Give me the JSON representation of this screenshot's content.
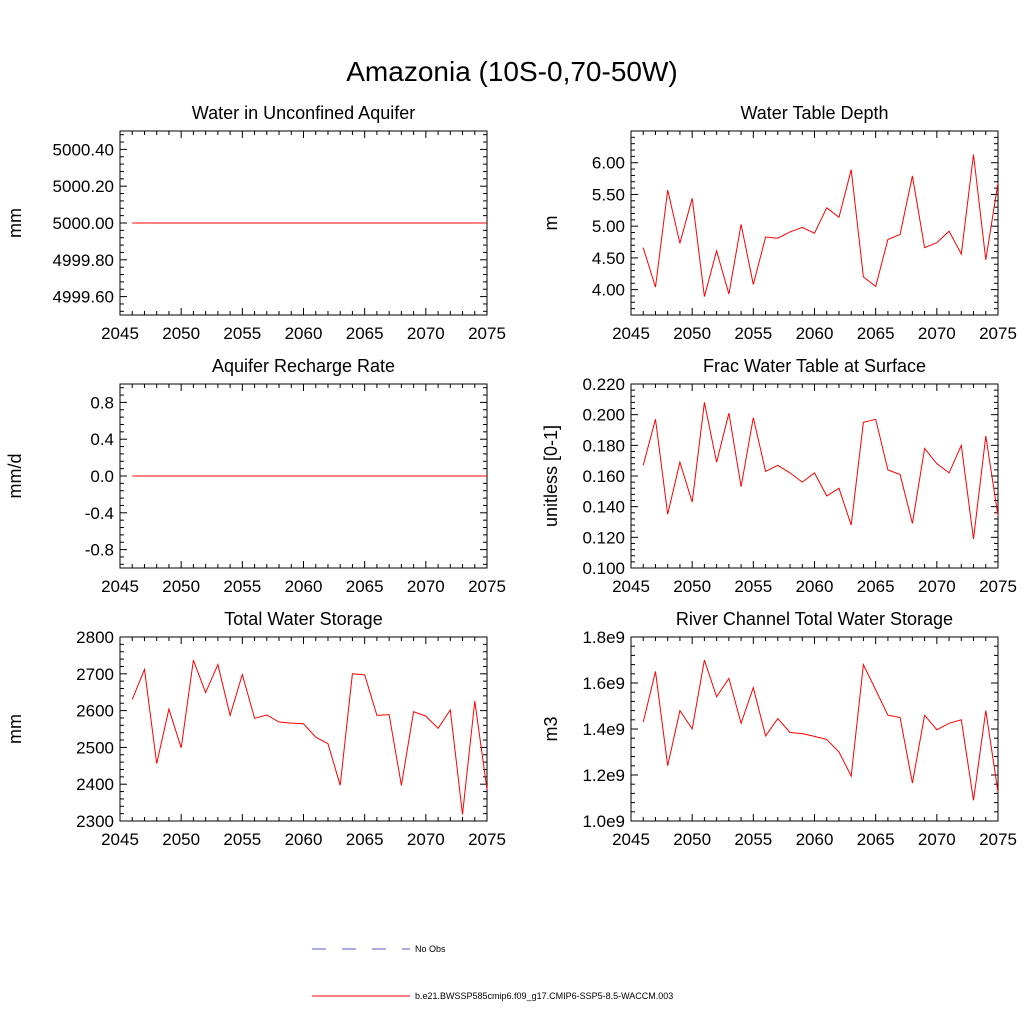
{
  "title": "Amazonia (10S-0,70-50W)",
  "colors": {
    "model": "#ff0000",
    "obs": "#5a5ac8",
    "axis": "#000000"
  },
  "legend": {
    "obs_label": "No Obs",
    "model_label": "b.e21.BWSSP585cmip6.f09_g17.CMIP6-SSP5-8.5-WACCM.003"
  },
  "chart_data": [
    {
      "type": "line",
      "title": "Water in Unconfined Aquifer",
      "ylabel": "mm",
      "xlim": [
        2045,
        2075
      ],
      "ylim": [
        4999.5,
        5000.5
      ],
      "xticks": [
        2045,
        2050,
        2055,
        2060,
        2065,
        2070,
        2075
      ],
      "xtick_labels": [
        "2045",
        "2050",
        "2055",
        "2060",
        "2065",
        "2070",
        "2075"
      ],
      "yticks": [
        4999.6,
        4999.8,
        5000.0,
        5000.2,
        5000.4
      ],
      "ytick_labels": [
        "4999.60",
        "4999.80",
        "5000.00",
        "5000.20",
        "5000.40"
      ],
      "x": [
        2046,
        2047,
        2048,
        2049,
        2050,
        2051,
        2052,
        2053,
        2054,
        2055,
        2056,
        2057,
        2058,
        2059,
        2060,
        2061,
        2062,
        2063,
        2064,
        2065,
        2066,
        2067,
        2068,
        2069,
        2070,
        2071,
        2072,
        2073,
        2074,
        2075
      ],
      "series": [
        {
          "values": [
            5000,
            5000,
            5000,
            5000,
            5000,
            5000,
            5000,
            5000,
            5000,
            5000,
            5000,
            5000,
            5000,
            5000,
            5000,
            5000,
            5000,
            5000,
            5000,
            5000,
            5000,
            5000,
            5000,
            5000,
            5000,
            5000,
            5000,
            5000,
            5000,
            5000
          ]
        }
      ]
    },
    {
      "type": "line",
      "title": "Water Table Depth",
      "ylabel": "m",
      "xlim": [
        2045,
        2075
      ],
      "ylim": [
        3.6,
        6.5
      ],
      "xticks": [
        2045,
        2050,
        2055,
        2060,
        2065,
        2070,
        2075
      ],
      "xtick_labels": [
        "2045",
        "2050",
        "2055",
        "2060",
        "2065",
        "2070",
        "2075"
      ],
      "yticks": [
        4.0,
        4.5,
        5.0,
        5.5,
        6.0
      ],
      "ytick_labels": [
        "4.00",
        "4.50",
        "5.00",
        "5.50",
        "6.00"
      ],
      "x": [
        2046,
        2047,
        2048,
        2049,
        2050,
        2051,
        2052,
        2053,
        2054,
        2055,
        2056,
        2057,
        2058,
        2059,
        2060,
        2061,
        2062,
        2063,
        2064,
        2065,
        2066,
        2067,
        2068,
        2069,
        2070,
        2071,
        2072,
        2073,
        2074,
        2075
      ],
      "series": [
        {
          "values": [
            4.66,
            4.04,
            5.57,
            4.73,
            5.44,
            3.89,
            4.61,
            3.93,
            5.03,
            4.08,
            4.83,
            4.81,
            4.91,
            4.98,
            4.89,
            5.29,
            5.14,
            5.89,
            4.2,
            4.05,
            4.79,
            4.87,
            5.79,
            4.66,
            4.74,
            4.92,
            4.56,
            6.13,
            4.47,
            5.68
          ]
        }
      ]
    },
    {
      "type": "line",
      "title": "Aquifer Recharge Rate",
      "ylabel": "mm/d",
      "xlim": [
        2045,
        2075
      ],
      "ylim": [
        -1,
        1
      ],
      "xticks": [
        2045,
        2050,
        2055,
        2060,
        2065,
        2070,
        2075
      ],
      "xtick_labels": [
        "2045",
        "2050",
        "2055",
        "2060",
        "2065",
        "2070",
        "2075"
      ],
      "yticks": [
        -0.8,
        -0.4,
        0.0,
        0.4,
        0.8
      ],
      "ytick_labels": [
        "-0.8",
        "-0.4",
        "0.0",
        "0.4",
        "0.8"
      ],
      "x": [
        2046,
        2047,
        2048,
        2049,
        2050,
        2051,
        2052,
        2053,
        2054,
        2055,
        2056,
        2057,
        2058,
        2059,
        2060,
        2061,
        2062,
        2063,
        2064,
        2065,
        2066,
        2067,
        2068,
        2069,
        2070,
        2071,
        2072,
        2073,
        2074,
        2075
      ],
      "series": [
        {
          "values": [
            0,
            0,
            0,
            0,
            0,
            0,
            0,
            0,
            0,
            0,
            0,
            0,
            0,
            0,
            0,
            0,
            0,
            0,
            0,
            0,
            0,
            0,
            0,
            0,
            0,
            0,
            0,
            0,
            0,
            0
          ]
        }
      ]
    },
    {
      "type": "line",
      "title": "Frac Water Table at Surface",
      "ylabel": "unitless [0-1]",
      "xlim": [
        2045,
        2075
      ],
      "ylim": [
        0.1,
        0.22
      ],
      "xticks": [
        2045,
        2050,
        2055,
        2060,
        2065,
        2070,
        2075
      ],
      "xtick_labels": [
        "2045",
        "2050",
        "2055",
        "2060",
        "2065",
        "2070",
        "2075"
      ],
      "yticks": [
        0.1,
        0.12,
        0.14,
        0.16,
        0.18,
        0.2,
        0.22
      ],
      "ytick_labels": [
        "0.100",
        "0.120",
        "0.140",
        "0.160",
        "0.180",
        "0.200",
        "0.220"
      ],
      "x": [
        2046,
        2047,
        2048,
        2049,
        2050,
        2051,
        2052,
        2053,
        2054,
        2055,
        2056,
        2057,
        2058,
        2059,
        2060,
        2061,
        2062,
        2063,
        2064,
        2065,
        2066,
        2067,
        2068,
        2069,
        2070,
        2071,
        2072,
        2073,
        2074,
        2075
      ],
      "series": [
        {
          "values": [
            0.167,
            0.197,
            0.135,
            0.169,
            0.143,
            0.208,
            0.169,
            0.201,
            0.153,
            0.198,
            0.163,
            0.167,
            0.162,
            0.156,
            0.162,
            0.147,
            0.152,
            0.128,
            0.195,
            0.197,
            0.164,
            0.161,
            0.129,
            0.178,
            0.168,
            0.162,
            0.18,
            0.119,
            0.186,
            0.134
          ]
        }
      ]
    },
    {
      "type": "line",
      "title": "Total Water Storage",
      "ylabel": "mm",
      "xlim": [
        2045,
        2075
      ],
      "ylim": [
        2300,
        2800
      ],
      "xticks": [
        2045,
        2050,
        2055,
        2060,
        2065,
        2070,
        2075
      ],
      "xtick_labels": [
        "2045",
        "2050",
        "2055",
        "2060",
        "2065",
        "2070",
        "2075"
      ],
      "yticks": [
        2300,
        2400,
        2500,
        2600,
        2700,
        2800
      ],
      "ytick_labels": [
        "2300",
        "2400",
        "2500",
        "2600",
        "2700",
        "2800"
      ],
      "x": [
        2046,
        2047,
        2048,
        2049,
        2050,
        2051,
        2052,
        2053,
        2054,
        2055,
        2056,
        2057,
        2058,
        2059,
        2060,
        2061,
        2062,
        2063,
        2064,
        2065,
        2066,
        2067,
        2068,
        2069,
        2070,
        2071,
        2072,
        2073,
        2074,
        2075
      ],
      "series": [
        {
          "values": [
            2630,
            2712,
            2456,
            2604,
            2499,
            2737,
            2649,
            2725,
            2587,
            2698,
            2579,
            2588,
            2569,
            2566,
            2564,
            2528,
            2510,
            2397,
            2700,
            2697,
            2587,
            2589,
            2397,
            2597,
            2585,
            2552,
            2602,
            2318,
            2626,
            2385
          ]
        }
      ]
    },
    {
      "type": "line",
      "title": "River Channel Total Water Storage",
      "ylabel": "m3",
      "xlim": [
        2045,
        2075
      ],
      "ylim": [
        1000000000,
        1800000000
      ],
      "xticks": [
        2045,
        2050,
        2055,
        2060,
        2065,
        2070,
        2075
      ],
      "xtick_labels": [
        "2045",
        "2050",
        "2055",
        "2060",
        "2065",
        "2070",
        "2075"
      ],
      "yticks": [
        1000000000,
        1200000000,
        1400000000,
        1600000000,
        1800000000
      ],
      "ytick_labels": [
        "1.0e9",
        "1.2e9",
        "1.4e9",
        "1.6e9",
        "1.8e9"
      ],
      "x": [
        2046,
        2047,
        2048,
        2049,
        2050,
        2051,
        2052,
        2053,
        2054,
        2055,
        2056,
        2057,
        2058,
        2059,
        2060,
        2061,
        2062,
        2063,
        2064,
        2065,
        2066,
        2067,
        2068,
        2069,
        2070,
        2071,
        2072,
        2073,
        2074,
        2075
      ],
      "series": [
        {
          "values": [
            1430000000,
            1650000000,
            1240000000,
            1480000000,
            1400000000,
            1700000000,
            1540000000,
            1620000000,
            1425000000,
            1580000000,
            1370000000,
            1445000000,
            1385000000,
            1380000000,
            1368000000,
            1355000000,
            1300000000,
            1195000000,
            1680000000,
            1570000000,
            1460000000,
            1450000000,
            1165000000,
            1460000000,
            1397000000,
            1425000000,
            1440000000,
            1090000000,
            1480000000,
            1125000000
          ]
        }
      ]
    }
  ]
}
